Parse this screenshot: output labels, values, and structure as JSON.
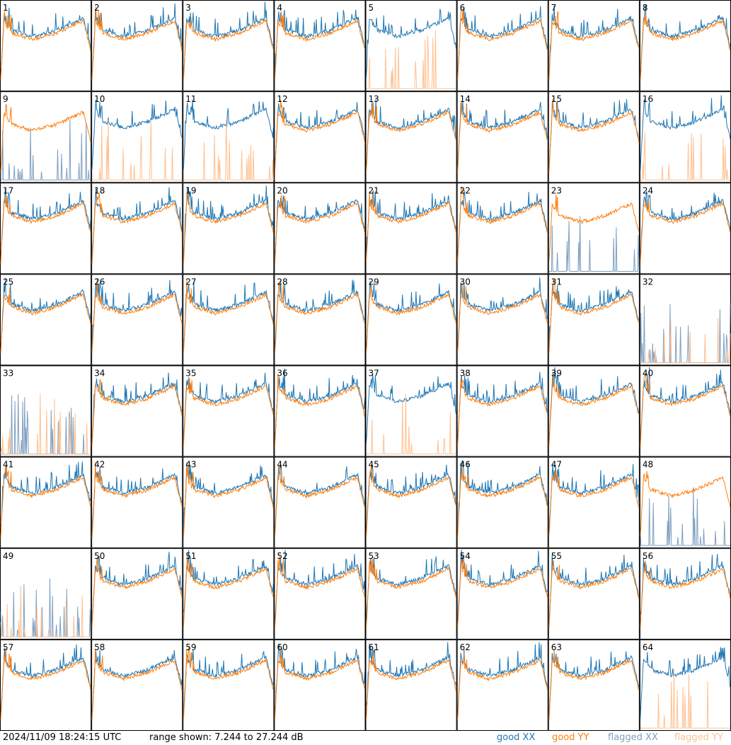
{
  "chart_data": {
    "type": "line",
    "layout": "grid 8x8 small multiples",
    "panels": [
      "1",
      "2",
      "3",
      "4",
      "5",
      "6",
      "7",
      "8",
      "9",
      "10",
      "11",
      "12",
      "13",
      "14",
      "15",
      "16",
      "17",
      "18",
      "19",
      "20",
      "21",
      "22",
      "23",
      "24",
      "25",
      "26",
      "27",
      "28",
      "29",
      "30",
      "31",
      "32",
      "33",
      "34",
      "35",
      "36",
      "37",
      "38",
      "39",
      "40",
      "41",
      "42",
      "43",
      "44",
      "45",
      "46",
      "47",
      "48",
      "49",
      "50",
      "51",
      "52",
      "53",
      "54",
      "55",
      "56",
      "57",
      "58",
      "59",
      "60",
      "61",
      "62",
      "63",
      "64"
    ],
    "ylim": [
      7.244,
      27.244
    ],
    "unit": "dB",
    "series": [
      {
        "name": "good XX",
        "color": "#1f77b4"
      },
      {
        "name": "good YY",
        "color": "#ff7f0e"
      },
      {
        "name": "flagged XX",
        "color": "#7f9fbf"
      },
      {
        "name": "flagged YY",
        "color": "#ffc090"
      }
    ],
    "flagged": {
      "xx": [
        "9",
        "23",
        "32",
        "33",
        "48",
        "49"
      ],
      "yy": [
        "5",
        "10",
        "11",
        "16",
        "32",
        "33",
        "37",
        "49",
        "64"
      ]
    },
    "title": "",
    "xlabel": "",
    "ylabel": ""
  },
  "footer": {
    "timestamp": "2024/11/09 18:24:15 UTC",
    "range": "range shown: 7.244 to 27.244 dB",
    "legend": {
      "good_xx": "good XX",
      "good_yy": "good YY",
      "flagged_xx": "flagged XX",
      "flagged_yy": "flagged YY"
    }
  }
}
